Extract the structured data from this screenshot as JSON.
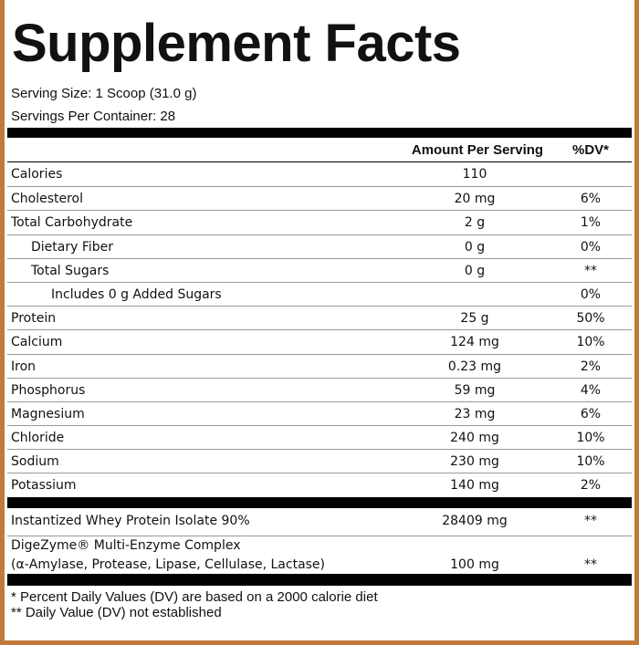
{
  "header": {
    "title": "Supplement Facts",
    "serving_size": "Serving Size: 1 Scoop (31.0 g)",
    "servings_per_container": "Servings Per Container: 28"
  },
  "table_header": {
    "amount": "Amount Per Serving",
    "dv": "%DV*"
  },
  "nutrients": [
    {
      "name": "Calories",
      "amount": "110"
    },
    {
      "name": "Cholesterol",
      "amount": "20 mg",
      "dv": "6%"
    },
    {
      "name": "Total Carbohydrate",
      "amount": "2 g",
      "dv": "1%",
      "sub": [
        {
          "name": "Dietary Fiber",
          "amount": "0 g",
          "dv": "0%"
        },
        {
          "name": "Total Sugars",
          "amount": "0 g",
          "dv": "**",
          "sub": [
            {
              "name": "Includes 0 g Added Sugars",
              "dv": "0%"
            }
          ]
        }
      ]
    },
    {
      "name": "Protein",
      "amount": "25 g",
      "dv": "50%"
    },
    {
      "name": "Calcium",
      "amount": "124 mg",
      "dv": "10%"
    },
    {
      "name": "Iron",
      "amount": "0.23 mg",
      "dv": "2%"
    },
    {
      "name": "Phosphorus",
      "amount": "59 mg",
      "dv": "4%"
    },
    {
      "name": "Magnesium",
      "amount": "23 mg",
      "dv": "6%"
    },
    {
      "name": "Chloride",
      "amount": "240 mg",
      "dv": "10%"
    },
    {
      "name": "Sodium",
      "amount": "230 mg",
      "dv": "10%"
    },
    {
      "name": "Potassium",
      "amount": "140 mg",
      "dv": "2%"
    }
  ],
  "ingredients": [
    {
      "name": [
        "Instantized Whey Protein Isolate 90%"
      ],
      "amount": "28409 mg",
      "dv": "**"
    },
    {
      "name": [
        "DigeZyme®  Multi-Enzyme Complex",
        "(α-Amylase, Protease, Lipase, Cellulase, Lactase)"
      ],
      "amount": "100 mg",
      "dv": "**"
    }
  ],
  "footnotes": [
    "* Percent Daily Values (DV) are based on a 2000 calorie diet",
    "** Daily Value (DV) not established"
  ]
}
